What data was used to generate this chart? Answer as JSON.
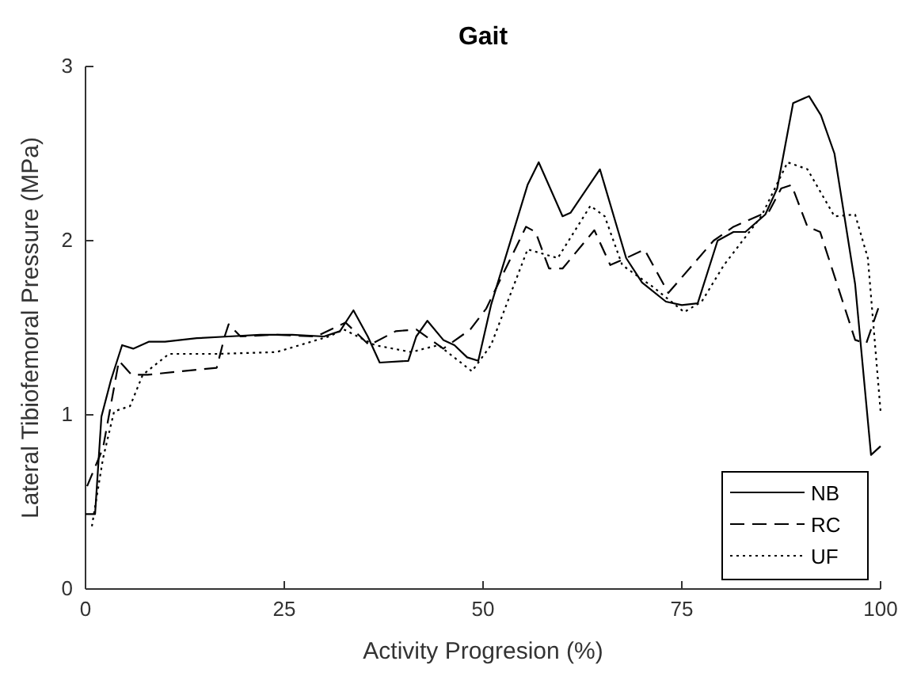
{
  "chart_data": {
    "type": "line",
    "title": "Gait",
    "xlabel": "Activity Progresion (%)",
    "ylabel": "Lateral Tibiofemoral Pressure (MPa)",
    "xlim": [
      0,
      100
    ],
    "xticks": [
      0,
      25,
      50,
      75,
      100
    ],
    "ylim": [
      0,
      3
    ],
    "yticks": [
      0,
      1,
      2,
      3
    ],
    "grid": false,
    "legend": "bottom right",
    "marker": "none",
    "series": [
      {
        "name": "NB",
        "color": "#000000",
        "line_style": "solid",
        "x": [
          0,
          1.2,
          2,
          3.2,
          4.6,
          6,
          8,
          10,
          14,
          18,
          22,
          26,
          30,
          32,
          33.7,
          35.5,
          37,
          40.6,
          41.6,
          43,
          45,
          46.4,
          48,
          49.4,
          51,
          55.6,
          57,
          60,
          61,
          64.7,
          68,
          70,
          73,
          75,
          77,
          79.5,
          81.5,
          83,
          85.5,
          87,
          89,
          91,
          92.5,
          94.2,
          96.8,
          98.8,
          100
        ],
        "values": [
          0.43,
          0.43,
          0.99,
          1.2,
          1.4,
          1.38,
          1.42,
          1.42,
          1.44,
          1.45,
          1.46,
          1.46,
          1.45,
          1.48,
          1.6,
          1.45,
          1.3,
          1.31,
          1.45,
          1.54,
          1.43,
          1.4,
          1.33,
          1.31,
          1.63,
          2.32,
          2.45,
          2.14,
          2.16,
          2.41,
          1.9,
          1.76,
          1.65,
          1.63,
          1.64,
          2.0,
          2.05,
          2.05,
          2.15,
          2.3,
          2.79,
          2.83,
          2.72,
          2.5,
          1.75,
          0.77,
          0.82
        ]
      },
      {
        "name": "RC",
        "color": "#000000",
        "line_style": "dashed",
        "x": [
          0.2,
          2.2,
          4.2,
          5.8,
          7.8,
          12,
          16.5,
          17.5,
          18,
          19.5,
          24,
          29,
          32.7,
          35.7,
          39,
          41.6,
          45,
          48.4,
          50.4,
          55.4,
          56.6,
          58.3,
          60,
          64,
          66,
          68,
          70.3,
          73.3,
          79,
          81.5,
          86,
          87.5,
          88.8,
          90.8,
          92.4,
          96.8,
          98.2,
          100
        ],
        "values": [
          0.59,
          0.81,
          1.31,
          1.23,
          1.23,
          1.25,
          1.27,
          1.45,
          1.52,
          1.45,
          1.46,
          1.45,
          1.53,
          1.4,
          1.48,
          1.49,
          1.38,
          1.49,
          1.61,
          2.08,
          2.05,
          1.84,
          1.84,
          2.06,
          1.86,
          1.9,
          1.95,
          1.7,
          2.0,
          2.08,
          2.17,
          2.3,
          2.32,
          2.08,
          2.05,
          1.43,
          1.41,
          1.65
        ]
      },
      {
        "name": "UF",
        "color": "#000000",
        "line_style": "dotted",
        "x": [
          0.8,
          2.2,
          3.6,
          5.6,
          7.2,
          10.5,
          16.5,
          24,
          30.6,
          32.5,
          36.4,
          41,
          42.6,
          44.4,
          48.6,
          51,
          55.6,
          59.4,
          63.5,
          65.3,
          67.5,
          71.5,
          75.3,
          77.5,
          80.3,
          85,
          88.3,
          90.8,
          94.2,
          96.8,
          98.4,
          100
        ],
        "values": [
          0.36,
          0.75,
          1.02,
          1.05,
          1.23,
          1.35,
          1.35,
          1.36,
          1.45,
          1.49,
          1.4,
          1.36,
          1.38,
          1.4,
          1.25,
          1.4,
          1.95,
          1.9,
          2.2,
          2.14,
          1.86,
          1.73,
          1.59,
          1.65,
          1.86,
          2.14,
          2.45,
          2.41,
          2.14,
          2.15,
          1.9,
          1.02
        ]
      }
    ]
  }
}
